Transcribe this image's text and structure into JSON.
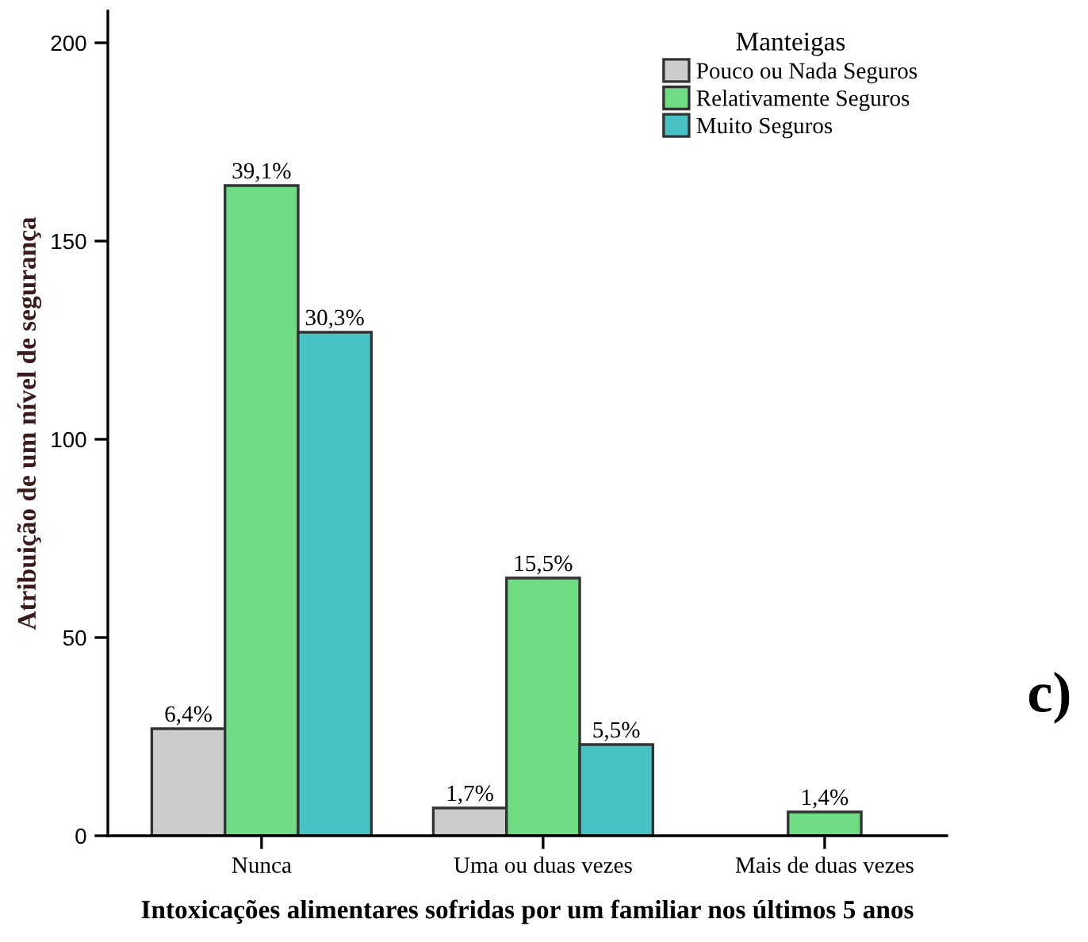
{
  "chart_data": {
    "type": "bar",
    "xlabel": "Intoxicações alimentares sofridas por um familiar nos últimos 5 anos",
    "ylabel": "Atribuição de um nível de segurança",
    "legend_title": "Manteigas",
    "legend": "top right",
    "grid": false,
    "categories": [
      "Nunca",
      "Uma ou duas vezes",
      "Mais de duas vezes"
    ],
    "ylim": [
      0,
      208
    ],
    "yticks": [
      0,
      50,
      100,
      150,
      200
    ],
    "series": [
      {
        "name": "Pouco ou Nada Seguros",
        "color": "#cccccc",
        "values": [
          27,
          7,
          null
        ]
      },
      {
        "name": "Relativamente Seguros",
        "color": "#6fdb82",
        "values": [
          164,
          65,
          6
        ]
      },
      {
        "name": "Muito Seguros",
        "color": "#48c2c5",
        "values": [
          127,
          23,
          null
        ]
      }
    ],
    "annotations": [
      "6,4%",
      "1,7%",
      "39,1%",
      "15,5%",
      "1,4%",
      "30,3%",
      "5,5%",
      "c)"
    ]
  }
}
